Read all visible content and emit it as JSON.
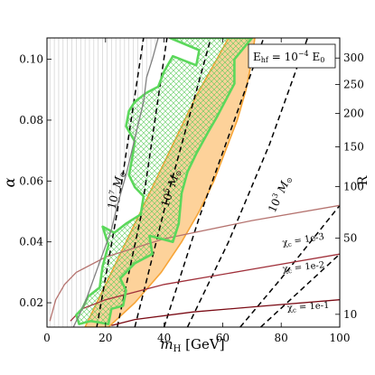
{
  "chart_data": {
    "type": "line",
    "xlabel": "m",
    "xlabel_sub": "H",
    "xlabel_unit": " [GeV]",
    "ylabel": "α",
    "y2label": "R",
    "xlim": [
      0,
      100
    ],
    "ylim": [
      0.012,
      0.107
    ],
    "xticks": [
      "0",
      "20",
      "40",
      "60",
      "80",
      "100"
    ],
    "yticks": [
      "0.02",
      "0.04",
      "0.06",
      "0.08",
      "0.10"
    ],
    "y2ticks": [
      "10",
      "50",
      "100",
      "150",
      "200",
      "250",
      "300"
    ],
    "legend": {
      "base": "E",
      "base_sub": "hf",
      "equals": " = 10",
      "exp": "−4",
      "rhs": " E",
      "rhs_sub": "0"
    },
    "mass_labels": [
      {
        "base": "10",
        "exp": "7",
        "sym": " M",
        "sub": "⊙"
      },
      {
        "base": "10",
        "exp": "5",
        "sym": " M",
        "sub": "⊙"
      },
      {
        "base": "10",
        "exp": "3",
        "sym": " M",
        "sub": "⊙"
      }
    ],
    "chi_labels": [
      {
        "text": "χ",
        "sub": "c",
        "rest": " = 1e-3"
      },
      {
        "text": "χ",
        "sub": "c",
        "rest": " = 1e-2"
      },
      {
        "text": "χ",
        "sub": "c",
        "rest": " = 1e-1"
      }
    ],
    "dashed_lines": [
      [
        [
          17,
          0.012
        ],
        [
          24,
          0.05
        ],
        [
          33,
          0.107
        ]
      ],
      [
        [
          24,
          0.012
        ],
        [
          32,
          0.048
        ],
        [
          41,
          0.107
        ]
      ],
      [
        [
          30,
          0.012
        ],
        [
          42,
          0.058
        ],
        [
          56,
          0.107
        ]
      ],
      [
        [
          40,
          0.012
        ],
        [
          52,
          0.048
        ],
        [
          64,
          0.08
        ],
        [
          74,
          0.107
        ]
      ],
      [
        [
          48,
          0.012
        ],
        [
          62,
          0.04
        ],
        [
          76,
          0.072
        ],
        [
          89,
          0.107
        ]
      ],
      [
        [
          66,
          0.012
        ],
        [
          80,
          0.028
        ],
        [
          100,
          0.052
        ]
      ],
      [
        [
          73,
          0.012
        ],
        [
          100,
          0.036
        ]
      ]
    ],
    "chi_curves": [
      {
        "name": "1e-3",
        "color": "#b5736f",
        "points": [
          [
            1,
            0.014
          ],
          [
            3,
            0.021
          ],
          [
            6,
            0.026
          ],
          [
            10,
            0.03
          ],
          [
            20,
            0.035
          ],
          [
            40,
            0.041
          ],
          [
            70,
            0.047
          ],
          [
            100,
            0.052
          ]
        ]
      },
      {
        "name": "1e-2",
        "color": "#a0303a",
        "points": [
          [
            8,
            0.014
          ],
          [
            12,
            0.018
          ],
          [
            20,
            0.021
          ],
          [
            40,
            0.026
          ],
          [
            70,
            0.031
          ],
          [
            100,
            0.036
          ]
        ]
      },
      {
        "name": "1e-1",
        "color": "#7a0a14",
        "points": [
          [
            22,
            0.0125
          ],
          [
            30,
            0.0145
          ],
          [
            50,
            0.017
          ],
          [
            75,
            0.019
          ],
          [
            100,
            0.021
          ]
        ]
      }
    ],
    "excluded_boundary": [
      [
        9,
        0.012
      ],
      [
        13,
        0.02
      ],
      [
        16,
        0.028
      ],
      [
        19,
        0.036
      ],
      [
        22,
        0.044
      ],
      [
        24,
        0.052
      ],
      [
        27,
        0.062
      ],
      [
        29,
        0.07
      ],
      [
        31,
        0.078
      ],
      [
        33,
        0.086
      ],
      [
        34,
        0.094
      ],
      [
        36,
        0.1
      ],
      [
        38,
        0.107
      ]
    ],
    "orange_band_left": [
      [
        13,
        0.012
      ],
      [
        17,
        0.02
      ],
      [
        22,
        0.03
      ],
      [
        27,
        0.04
      ],
      [
        33,
        0.052
      ],
      [
        39,
        0.064
      ],
      [
        45,
        0.076
      ],
      [
        51,
        0.088
      ],
      [
        58,
        0.1
      ],
      [
        62,
        0.107
      ]
    ],
    "orange_band_right": [
      [
        21,
        0.012
      ],
      [
        30,
        0.02
      ],
      [
        39,
        0.03
      ],
      [
        46,
        0.04
      ],
      [
        52,
        0.05
      ],
      [
        57,
        0.06
      ],
      [
        61,
        0.07
      ],
      [
        65,
        0.08
      ],
      [
        68,
        0.09
      ],
      [
        70,
        0.1
      ],
      [
        71,
        0.107
      ]
    ],
    "green_region": [
      [
        11,
        0.013
      ],
      [
        15,
        0.014
      ],
      [
        21,
        0.013
      ],
      [
        22,
        0.018
      ],
      [
        26,
        0.019
      ],
      [
        27,
        0.024
      ],
      [
        25,
        0.028
      ],
      [
        30,
        0.033
      ],
      [
        36,
        0.036
      ],
      [
        35,
        0.042
      ],
      [
        43,
        0.04
      ],
      [
        45,
        0.046
      ],
      [
        46,
        0.056
      ],
      [
        48,
        0.063
      ],
      [
        51,
        0.069
      ],
      [
        55,
        0.076
      ],
      [
        58,
        0.081
      ],
      [
        64,
        0.092
      ],
      [
        64,
        0.1
      ],
      [
        70,
        0.107
      ],
      [
        42,
        0.107
      ],
      [
        52,
        0.103
      ],
      [
        51,
        0.098
      ],
      [
        43,
        0.101
      ],
      [
        40,
        0.096
      ],
      [
        38,
        0.091
      ],
      [
        34,
        0.089
      ],
      [
        30,
        0.086
      ],
      [
        28,
        0.083
      ],
      [
        27,
        0.078
      ],
      [
        30,
        0.073
      ],
      [
        29,
        0.067
      ],
      [
        28,
        0.062
      ],
      [
        30,
        0.058
      ],
      [
        33,
        0.055
      ],
      [
        32,
        0.049
      ],
      [
        27,
        0.046
      ],
      [
        23,
        0.043
      ],
      [
        19,
        0.045
      ],
      [
        21,
        0.039
      ],
      [
        19,
        0.032
      ],
      [
        18,
        0.025
      ],
      [
        14,
        0.022
      ],
      [
        12,
        0.018
      ],
      [
        10,
        0.016
      ]
    ]
  }
}
